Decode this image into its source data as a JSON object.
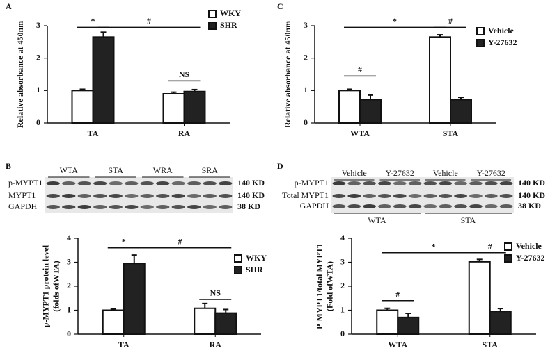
{
  "chart_data": [
    {
      "type": "bar",
      "panel": "A",
      "ylabel": [
        "Relative absorbance at 450nm"
      ],
      "categories": [
        "TA",
        "RA"
      ],
      "series": [
        {
          "name": "WKY",
          "color": "#ffffff",
          "values": [
            1.0,
            0.9
          ],
          "errors": [
            0.04,
            0.05
          ]
        },
        {
          "name": "SHR",
          "color": "#222222",
          "values": [
            2.65,
            0.97
          ],
          "errors": [
            0.15,
            0.06
          ]
        }
      ],
      "ylim": [
        0,
        3
      ],
      "yticks": [
        0,
        1,
        2,
        3
      ],
      "annotations": [
        "*",
        "#",
        "NS"
      ]
    },
    {
      "type": "bar",
      "panel": "C",
      "ylabel": [
        "Relative absorbance at 450nm"
      ],
      "categories": [
        "WTA",
        "STA"
      ],
      "series": [
        {
          "name": "Vehicle",
          "color": "#ffffff",
          "values": [
            1.0,
            2.65
          ],
          "errors": [
            0.04,
            0.07
          ]
        },
        {
          "name": "Y-27632",
          "color": "#222222",
          "values": [
            0.72,
            0.72
          ],
          "errors": [
            0.14,
            0.07
          ]
        }
      ],
      "ylim": [
        0,
        3
      ],
      "yticks": [
        0,
        1,
        2,
        3
      ],
      "annotations": [
        "#",
        "*",
        "#"
      ]
    },
    {
      "type": "bar",
      "panel": "B",
      "ylabel": [
        "p-MYPT1 protein level",
        "(folds ofWTA)"
      ],
      "categories": [
        "TA",
        "RA"
      ],
      "series": [
        {
          "name": "WKY",
          "color": "#ffffff",
          "values": [
            1.0,
            1.08
          ],
          "errors": [
            0.05,
            0.2
          ]
        },
        {
          "name": "SHR",
          "color": "#222222",
          "values": [
            2.95,
            0.88
          ],
          "errors": [
            0.35,
            0.15
          ]
        }
      ],
      "ylim": [
        0,
        4
      ],
      "yticks": [
        0,
        1,
        2,
        3,
        4
      ],
      "annotations": [
        "*",
        "#",
        "NS"
      ]
    },
    {
      "type": "bar",
      "panel": "D",
      "ylabel": [
        "P-MYPT1/total MYPT1",
        "(Fold ofWTA)"
      ],
      "categories": [
        "WTA",
        "STA"
      ],
      "series": [
        {
          "name": "Vehicle",
          "color": "#ffffff",
          "values": [
            1.0,
            3.02
          ],
          "errors": [
            0.08,
            0.1
          ]
        },
        {
          "name": "Y-27632",
          "color": "#222222",
          "values": [
            0.7,
            0.95
          ],
          "errors": [
            0.17,
            0.12
          ]
        }
      ],
      "ylim": [
        0,
        4
      ],
      "yticks": [
        0,
        1,
        2,
        3,
        4
      ],
      "annotations": [
        "#",
        "*",
        "#"
      ]
    }
  ],
  "blots": [
    {
      "columns": [
        "WTA",
        "STA",
        "WRA",
        "SRA"
      ],
      "rows": [
        "p-MYPT1",
        "MYPT1",
        "GAPDH"
      ],
      "sizes": [
        "140 KD",
        "140 KD",
        "38 KD"
      ]
    },
    {
      "columns": [
        "Vehicle",
        "Y-27632",
        "Vehicle",
        "Y-27632"
      ],
      "rows": [
        "p-MYPT1",
        "Total MYPT1",
        "GAPDH"
      ],
      "sizes": [
        "140 KD",
        "140 KD",
        "38 KD"
      ],
      "groups": [
        "WTA",
        "STA"
      ]
    }
  ]
}
